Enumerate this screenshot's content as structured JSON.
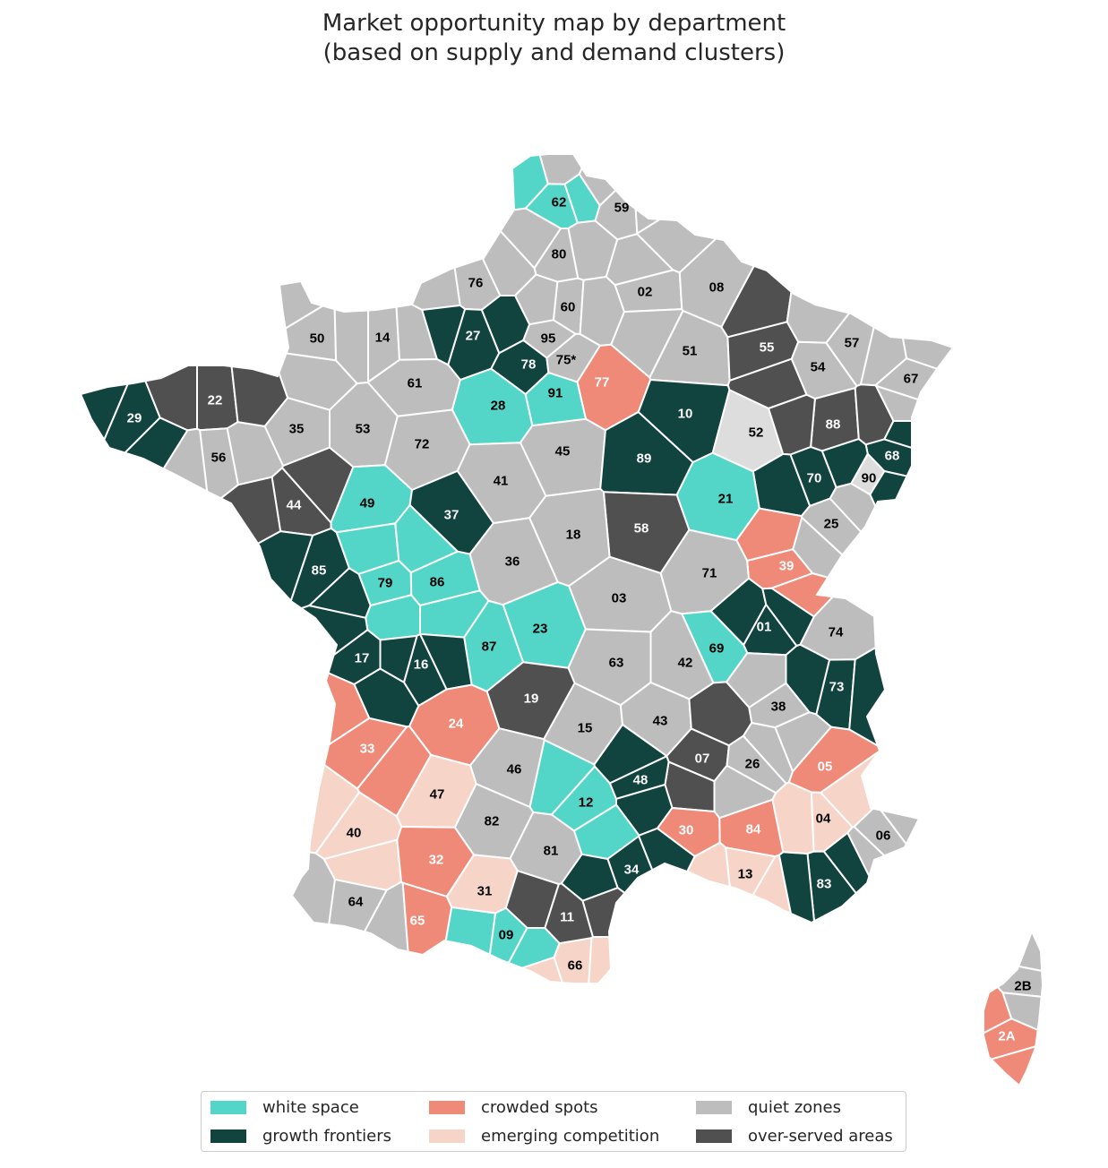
{
  "title": {
    "line1": "Market opportunity map by department",
    "line2": "(based on supply and demand clusters)"
  },
  "legend": {
    "items": [
      {
        "key": "white_space",
        "label": "white space",
        "color": "#53d6c8"
      },
      {
        "key": "growth_frontiers",
        "label": "growth frontiers",
        "color": "#11433f"
      },
      {
        "key": "crowded_spots",
        "label": "crowded spots",
        "color": "#ef8a79"
      },
      {
        "key": "emerging_competition",
        "label": "emerging competition",
        "color": "#f6d5c8"
      },
      {
        "key": "quiet_zones",
        "label": "quiet zones",
        "color": "#bdbdbd"
      },
      {
        "key": "over_served_areas",
        "label": "over-served areas",
        "color": "#505050"
      }
    ],
    "unclassified_color": "#dddddd"
  },
  "departments": [
    {
      "code": "62",
      "category": "white_space"
    },
    {
      "code": "59",
      "category": "quiet_zones"
    },
    {
      "code": "80",
      "category": "quiet_zones"
    },
    {
      "code": "76",
      "category": "quiet_zones"
    },
    {
      "code": "02",
      "category": "quiet_zones"
    },
    {
      "code": "08",
      "category": "quiet_zones"
    },
    {
      "code": "60",
      "category": "quiet_zones"
    },
    {
      "code": "50",
      "category": "quiet_zones"
    },
    {
      "code": "14",
      "category": "quiet_zones"
    },
    {
      "code": "27",
      "category": "growth_frontiers"
    },
    {
      "code": "95",
      "category": "quiet_zones"
    },
    {
      "code": "78",
      "category": "growth_frontiers"
    },
    {
      "code": "75*",
      "category": "quiet_zones"
    },
    {
      "code": "77",
      "category": "crowded_spots"
    },
    {
      "code": "51",
      "category": "quiet_zones"
    },
    {
      "code": "55",
      "category": "over_served_areas"
    },
    {
      "code": "57",
      "category": "quiet_zones"
    },
    {
      "code": "54",
      "category": "quiet_zones"
    },
    {
      "code": "67",
      "category": "quiet_zones"
    },
    {
      "code": "29",
      "category": "growth_frontiers"
    },
    {
      "code": "22",
      "category": "over_served_areas"
    },
    {
      "code": "61",
      "category": "quiet_zones"
    },
    {
      "code": "28",
      "category": "white_space"
    },
    {
      "code": "91",
      "category": "white_space"
    },
    {
      "code": "10",
      "category": "growth_frontiers"
    },
    {
      "code": "52",
      "category": "unclassified"
    },
    {
      "code": "88",
      "category": "over_served_areas"
    },
    {
      "code": "68",
      "category": "growth_frontiers"
    },
    {
      "code": "35",
      "category": "quiet_zones"
    },
    {
      "code": "53",
      "category": "quiet_zones"
    },
    {
      "code": "72",
      "category": "quiet_zones"
    },
    {
      "code": "45",
      "category": "quiet_zones"
    },
    {
      "code": "89",
      "category": "growth_frontiers"
    },
    {
      "code": "70",
      "category": "growth_frontiers"
    },
    {
      "code": "90",
      "category": "unclassified"
    },
    {
      "code": "56",
      "category": "quiet_zones"
    },
    {
      "code": "44",
      "category": "over_served_areas"
    },
    {
      "code": "49",
      "category": "white_space"
    },
    {
      "code": "41",
      "category": "quiet_zones"
    },
    {
      "code": "21",
      "category": "white_space"
    },
    {
      "code": "37",
      "category": "growth_frontiers"
    },
    {
      "code": "58",
      "category": "over_served_areas"
    },
    {
      "code": "25",
      "category": "quiet_zones"
    },
    {
      "code": "18",
      "category": "quiet_zones"
    },
    {
      "code": "36",
      "category": "quiet_zones"
    },
    {
      "code": "85",
      "category": "growth_frontiers"
    },
    {
      "code": "79",
      "category": "white_space"
    },
    {
      "code": "86",
      "category": "white_space"
    },
    {
      "code": "39",
      "category": "crowded_spots"
    },
    {
      "code": "71",
      "category": "quiet_zones"
    },
    {
      "code": "03",
      "category": "quiet_zones"
    },
    {
      "code": "01",
      "category": "growth_frontiers"
    },
    {
      "code": "74",
      "category": "quiet_zones"
    },
    {
      "code": "23",
      "category": "white_space"
    },
    {
      "code": "87",
      "category": "white_space"
    },
    {
      "code": "69",
      "category": "white_space"
    },
    {
      "code": "17",
      "category": "growth_frontiers"
    },
    {
      "code": "16",
      "category": "growth_frontiers"
    },
    {
      "code": "63",
      "category": "quiet_zones"
    },
    {
      "code": "42",
      "category": "quiet_zones"
    },
    {
      "code": "73",
      "category": "growth_frontiers"
    },
    {
      "code": "19",
      "category": "over_served_areas"
    },
    {
      "code": "24",
      "category": "crowded_spots"
    },
    {
      "code": "38",
      "category": "quiet_zones"
    },
    {
      "code": "15",
      "category": "quiet_zones"
    },
    {
      "code": "43",
      "category": "quiet_zones"
    },
    {
      "code": "33",
      "category": "crowded_spots"
    },
    {
      "code": "07",
      "category": "over_served_areas"
    },
    {
      "code": "26",
      "category": "quiet_zones"
    },
    {
      "code": "05",
      "category": "crowded_spots"
    },
    {
      "code": "46",
      "category": "quiet_zones"
    },
    {
      "code": "48",
      "category": "growth_frontiers"
    },
    {
      "code": "47",
      "category": "emerging_competition"
    },
    {
      "code": "12",
      "category": "white_space"
    },
    {
      "code": "04",
      "category": "emerging_competition"
    },
    {
      "code": "82",
      "category": "quiet_zones"
    },
    {
      "code": "40",
      "category": "emerging_competition"
    },
    {
      "code": "30",
      "category": "crowded_spots"
    },
    {
      "code": "84",
      "category": "crowded_spots"
    },
    {
      "code": "06",
      "category": "quiet_zones"
    },
    {
      "code": "81",
      "category": "quiet_zones"
    },
    {
      "code": "32",
      "category": "crowded_spots"
    },
    {
      "code": "34",
      "category": "growth_frontiers"
    },
    {
      "code": "13",
      "category": "emerging_competition"
    },
    {
      "code": "83",
      "category": "growth_frontiers"
    },
    {
      "code": "31",
      "category": "emerging_competition"
    },
    {
      "code": "64",
      "category": "quiet_zones"
    },
    {
      "code": "11",
      "category": "over_served_areas"
    },
    {
      "code": "65",
      "category": "crowded_spots"
    },
    {
      "code": "09",
      "category": "white_space"
    },
    {
      "code": "66",
      "category": "emerging_competition"
    },
    {
      "code": "2B",
      "category": "quiet_zones"
    },
    {
      "code": "2A",
      "category": "crowded_spots"
    }
  ]
}
